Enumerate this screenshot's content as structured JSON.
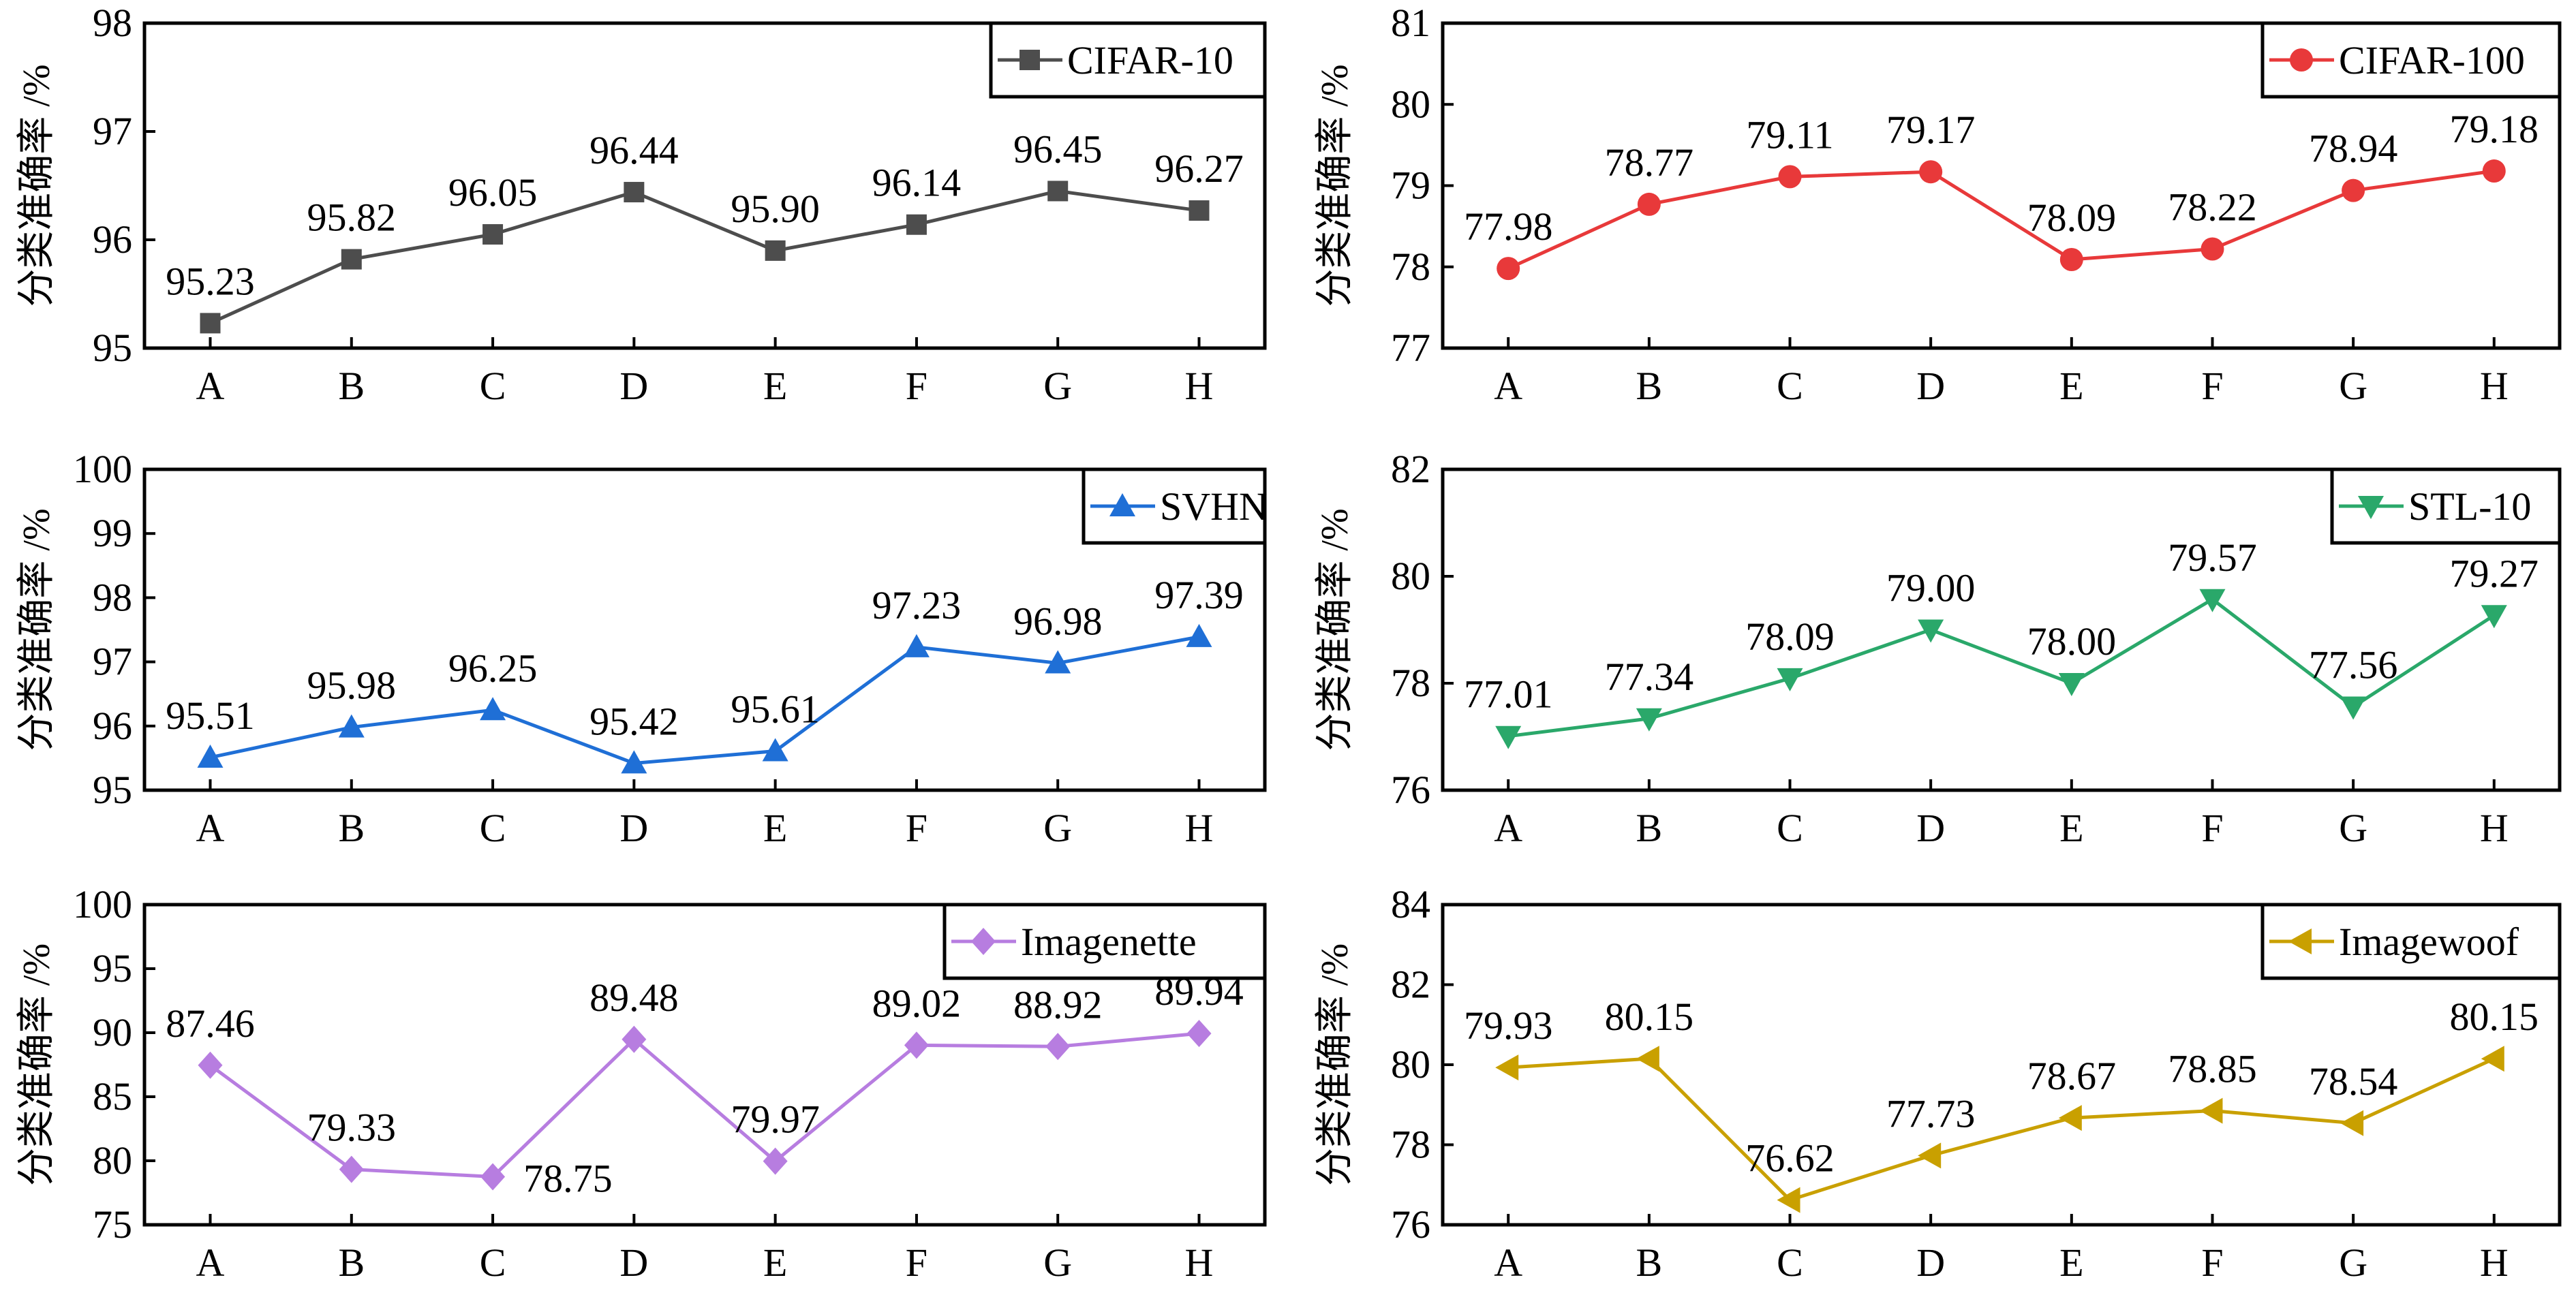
{
  "chart_data": [
    {
      "type": "line",
      "ylabel": "分类准确率 /%",
      "categories": [
        "A",
        "B",
        "C",
        "D",
        "E",
        "F",
        "G",
        "H"
      ],
      "ylim": [
        95,
        98
      ],
      "yticks": [
        95,
        96,
        97,
        98
      ],
      "legend_position": "top-right",
      "marker": "square",
      "color": "#4d4d4d",
      "series": [
        {
          "name": "CIFAR-10",
          "values": [
            95.23,
            95.82,
            96.05,
            96.44,
            95.9,
            96.14,
            96.45,
            96.27
          ],
          "labels": [
            "95.23",
            "95.82",
            "96.05",
            "96.44",
            "95.90",
            "96.14",
            "96.45",
            "96.27"
          ]
        }
      ]
    },
    {
      "type": "line",
      "ylabel": "分类准确率 /%",
      "categories": [
        "A",
        "B",
        "C",
        "D",
        "E",
        "F",
        "G",
        "H"
      ],
      "ylim": [
        77,
        81
      ],
      "yticks": [
        77,
        78,
        79,
        80,
        81
      ],
      "legend_position": "top-right",
      "marker": "circle",
      "color": "#e8393a",
      "series": [
        {
          "name": "CIFAR-100",
          "values": [
            77.98,
            78.77,
            79.11,
            79.17,
            78.09,
            78.22,
            78.94,
            79.18
          ],
          "labels": [
            "77.98",
            "78.77",
            "79.11",
            "79.17",
            "78.09",
            "78.22",
            "78.94",
            "79.18"
          ]
        }
      ]
    },
    {
      "type": "line",
      "ylabel": "分类准确率 /%",
      "categories": [
        "A",
        "B",
        "C",
        "D",
        "E",
        "F",
        "G",
        "H"
      ],
      "ylim": [
        95,
        100
      ],
      "yticks": [
        95,
        96,
        97,
        98,
        99,
        100
      ],
      "legend_position": "top-right",
      "marker": "triangle-up",
      "color": "#1f6fd6",
      "series": [
        {
          "name": "SVHN",
          "values": [
            95.51,
            95.98,
            96.25,
            95.42,
            95.61,
            97.23,
            96.98,
            97.39
          ],
          "labels": [
            "95.51",
            "95.98",
            "96.25",
            "95.42",
            "95.61",
            "97.23",
            "96.98",
            "97.39"
          ]
        }
      ]
    },
    {
      "type": "line",
      "ylabel": "分类准确率 /%",
      "categories": [
        "A",
        "B",
        "C",
        "D",
        "E",
        "F",
        "G",
        "H"
      ],
      "ylim": [
        76,
        82
      ],
      "yticks": [
        76,
        78,
        80,
        82
      ],
      "legend_position": "top-right",
      "marker": "triangle-down",
      "color": "#2aa86a",
      "series": [
        {
          "name": "STL-10",
          "values": [
            77.01,
            77.34,
            78.09,
            79.0,
            78.0,
            79.57,
            77.56,
            79.27
          ],
          "labels": [
            "77.01",
            "77.34",
            "78.09",
            "79.00",
            "78.00",
            "79.57",
            "77.56",
            "79.27"
          ]
        }
      ]
    },
    {
      "type": "line",
      "ylabel": "分类准确率 /%",
      "categories": [
        "A",
        "B",
        "C",
        "D",
        "E",
        "F",
        "G",
        "H"
      ],
      "ylim": [
        75,
        100
      ],
      "yticks": [
        75,
        80,
        85,
        90,
        95,
        100
      ],
      "legend_position": "top-right",
      "marker": "diamond",
      "color": "#b77de0",
      "series": [
        {
          "name": "Imagenette",
          "values": [
            87.46,
            79.33,
            78.75,
            89.48,
            79.97,
            89.02,
            88.92,
            89.94
          ],
          "labels": [
            "87.46",
            "79.33",
            "78.75",
            "89.48",
            "79.97",
            "89.02",
            "88.92",
            "89.94"
          ]
        }
      ]
    },
    {
      "type": "line",
      "ylabel": "分类准确率 /%",
      "categories": [
        "A",
        "B",
        "C",
        "D",
        "E",
        "F",
        "G",
        "H"
      ],
      "ylim": [
        76,
        84
      ],
      "yticks": [
        76,
        78,
        80,
        82,
        84
      ],
      "legend_position": "top-right",
      "marker": "triangle-left",
      "color": "#c9a000",
      "series": [
        {
          "name": "Imagewoof",
          "values": [
            79.93,
            80.15,
            76.62,
            77.73,
            78.67,
            78.85,
            78.54,
            80.15
          ],
          "labels": [
            "79.93",
            "80.15",
            "76.62",
            "77.73",
            "78.67",
            "78.85",
            "78.54",
            "80.15"
          ]
        }
      ]
    }
  ]
}
